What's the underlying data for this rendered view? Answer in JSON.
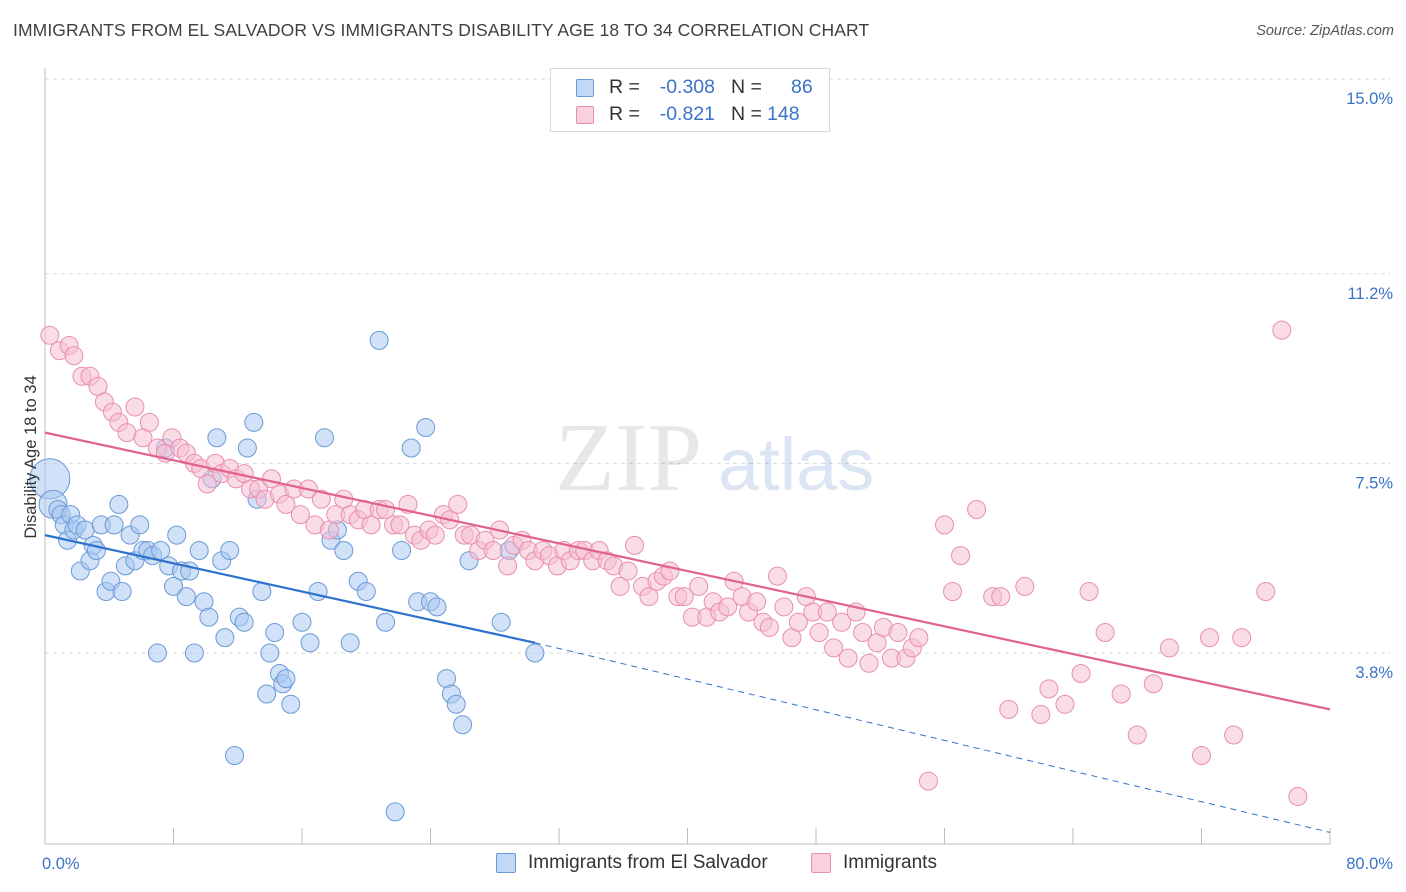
{
  "title": "IMMIGRANTS FROM EL SALVADOR VS IMMIGRANTS DISABILITY AGE 18 TO 34 CORRELATION CHART",
  "source": "Source: ZipAtlas.com",
  "watermark": {
    "part1": "ZIP",
    "part2": "atlas"
  },
  "legend_top": [
    {
      "r_label": "R =",
      "r_value": "-0.308",
      "n_label": "N =",
      "n_value": "86"
    },
    {
      "r_label": "R =",
      "r_value": "-0.821",
      "n_label": "N =",
      "n_value": "148"
    }
  ],
  "chart_data": {
    "type": "scatter",
    "ylabel": "Disability Age 18 to 34",
    "xlabel": "",
    "xlim": [
      0,
      80
    ],
    "ylim": [
      0,
      15
    ],
    "x_tick_labels": [
      "0.0%",
      "80.0%"
    ],
    "y_ticks": [
      3.8,
      7.5,
      11.2,
      15.0
    ],
    "y_tick_labels": [
      "3.8%",
      "7.5%",
      "11.2%",
      "15.0%"
    ],
    "grid": "horizontal dashed",
    "legend_position": "bottom",
    "colors": {
      "blue_fill": "#a9c8f2",
      "blue_edge": "#6c9ad6",
      "blue_line": "#2e72cf",
      "pink_fill": "#f6bfd1",
      "pink_edge": "#e98fae",
      "pink_line": "#e0628e",
      "tick_text": "#3b73c7"
    },
    "series": [
      {
        "name": "Immigrants from El Salvador",
        "trend": {
          "x": [
            0,
            30.5
          ],
          "y": [
            6.1,
            4.0
          ],
          "dashed_to": [
            80,
            0.3
          ]
        },
        "points": [
          [
            0.3,
            7.2
          ],
          [
            0.5,
            6.7
          ],
          [
            0.8,
            6.6
          ],
          [
            1.0,
            6.5
          ],
          [
            1.2,
            6.3
          ],
          [
            1.4,
            6.0
          ],
          [
            1.6,
            6.5
          ],
          [
            1.8,
            6.2
          ],
          [
            2.0,
            6.3
          ],
          [
            2.2,
            5.4
          ],
          [
            2.5,
            6.2
          ],
          [
            2.8,
            5.6
          ],
          [
            3.0,
            5.9
          ],
          [
            3.2,
            5.8
          ],
          [
            3.5,
            6.3
          ],
          [
            3.8,
            5.0
          ],
          [
            4.1,
            5.2
          ],
          [
            4.3,
            6.3
          ],
          [
            4.6,
            6.7
          ],
          [
            4.8,
            5.0
          ],
          [
            5.0,
            5.5
          ],
          [
            5.3,
            6.1
          ],
          [
            5.6,
            5.6
          ],
          [
            5.9,
            6.3
          ],
          [
            6.1,
            5.8
          ],
          [
            6.4,
            5.8
          ],
          [
            6.7,
            5.7
          ],
          [
            7.0,
            3.8
          ],
          [
            7.2,
            5.8
          ],
          [
            7.5,
            7.8
          ],
          [
            7.7,
            5.5
          ],
          [
            8.0,
            5.1
          ],
          [
            8.2,
            6.1
          ],
          [
            8.5,
            5.4
          ],
          [
            8.8,
            4.9
          ],
          [
            9.0,
            5.4
          ],
          [
            9.3,
            3.8
          ],
          [
            9.6,
            5.8
          ],
          [
            9.9,
            4.8
          ],
          [
            10.2,
            4.5
          ],
          [
            10.4,
            7.2
          ],
          [
            10.7,
            8.0
          ],
          [
            11.0,
            5.6
          ],
          [
            11.2,
            4.1
          ],
          [
            11.5,
            5.8
          ],
          [
            11.8,
            1.8
          ],
          [
            12.1,
            4.5
          ],
          [
            12.4,
            4.4
          ],
          [
            12.6,
            7.8
          ],
          [
            13.0,
            8.3
          ],
          [
            13.2,
            6.8
          ],
          [
            13.5,
            5.0
          ],
          [
            13.8,
            3.0
          ],
          [
            14.0,
            3.8
          ],
          [
            14.3,
            4.2
          ],
          [
            14.6,
            3.4
          ],
          [
            14.8,
            3.2
          ],
          [
            15.0,
            3.3
          ],
          [
            15.3,
            2.8
          ],
          [
            16.0,
            4.4
          ],
          [
            16.5,
            4.0
          ],
          [
            17.0,
            5.0
          ],
          [
            17.4,
            8.0
          ],
          [
            17.8,
            6.0
          ],
          [
            18.2,
            6.2
          ],
          [
            18.6,
            5.8
          ],
          [
            19.0,
            4.0
          ],
          [
            19.5,
            5.2
          ],
          [
            20.0,
            5.0
          ],
          [
            20.8,
            9.9
          ],
          [
            21.2,
            4.4
          ],
          [
            21.8,
            0.7
          ],
          [
            22.2,
            5.8
          ],
          [
            22.8,
            7.8
          ],
          [
            23.2,
            4.8
          ],
          [
            23.7,
            8.2
          ],
          [
            24.0,
            4.8
          ],
          [
            24.4,
            4.7
          ],
          [
            25.0,
            3.3
          ],
          [
            25.3,
            3.0
          ],
          [
            25.6,
            2.8
          ],
          [
            26.0,
            2.4
          ],
          [
            26.4,
            5.6
          ],
          [
            28.4,
            4.4
          ],
          [
            28.9,
            5.8
          ],
          [
            30.5,
            3.8
          ]
        ]
      },
      {
        "name": "Immigrants",
        "trend": {
          "x": [
            0,
            80
          ],
          "y": [
            8.1,
            2.7
          ]
        },
        "points": [
          [
            0.3,
            10.0
          ],
          [
            0.9,
            9.7
          ],
          [
            1.5,
            9.8
          ],
          [
            1.8,
            9.6
          ],
          [
            2.3,
            9.2
          ],
          [
            2.8,
            9.2
          ],
          [
            3.3,
            9.0
          ],
          [
            3.7,
            8.7
          ],
          [
            4.2,
            8.5
          ],
          [
            4.6,
            8.3
          ],
          [
            5.1,
            8.1
          ],
          [
            5.6,
            8.6
          ],
          [
            6.1,
            8.0
          ],
          [
            6.5,
            8.3
          ],
          [
            7.0,
            7.8
          ],
          [
            7.5,
            7.7
          ],
          [
            7.9,
            8.0
          ],
          [
            8.4,
            7.8
          ],
          [
            8.8,
            7.7
          ],
          [
            9.3,
            7.5
          ],
          [
            9.7,
            7.4
          ],
          [
            10.1,
            7.1
          ],
          [
            10.6,
            7.5
          ],
          [
            11.0,
            7.3
          ],
          [
            11.5,
            7.4
          ],
          [
            11.9,
            7.2
          ],
          [
            12.4,
            7.3
          ],
          [
            12.8,
            7.0
          ],
          [
            13.3,
            7.0
          ],
          [
            13.7,
            6.8
          ],
          [
            14.1,
            7.2
          ],
          [
            14.6,
            6.9
          ],
          [
            15.0,
            6.7
          ],
          [
            15.5,
            7.0
          ],
          [
            15.9,
            6.5
          ],
          [
            16.4,
            7.0
          ],
          [
            16.8,
            6.3
          ],
          [
            17.2,
            6.8
          ],
          [
            17.7,
            6.2
          ],
          [
            18.1,
            6.5
          ],
          [
            18.6,
            6.8
          ],
          [
            19.0,
            6.5
          ],
          [
            19.5,
            6.4
          ],
          [
            19.9,
            6.6
          ],
          [
            20.3,
            6.3
          ],
          [
            20.8,
            6.6
          ],
          [
            21.2,
            6.6
          ],
          [
            21.7,
            6.3
          ],
          [
            22.1,
            6.3
          ],
          [
            22.6,
            6.7
          ],
          [
            23.0,
            6.1
          ],
          [
            23.4,
            6.0
          ],
          [
            23.9,
            6.2
          ],
          [
            24.3,
            6.1
          ],
          [
            24.8,
            6.5
          ],
          [
            25.2,
            6.4
          ],
          [
            25.7,
            6.7
          ],
          [
            26.1,
            6.1
          ],
          [
            26.5,
            6.1
          ],
          [
            27.0,
            5.8
          ],
          [
            27.4,
            6.0
          ],
          [
            27.9,
            5.8
          ],
          [
            28.3,
            6.2
          ],
          [
            28.8,
            5.5
          ],
          [
            29.2,
            5.9
          ],
          [
            29.7,
            6.0
          ],
          [
            30.1,
            5.8
          ],
          [
            30.5,
            5.6
          ],
          [
            31.0,
            5.8
          ],
          [
            31.4,
            5.7
          ],
          [
            31.9,
            5.5
          ],
          [
            32.3,
            5.8
          ],
          [
            32.7,
            5.6
          ],
          [
            33.2,
            5.8
          ],
          [
            33.6,
            5.8
          ],
          [
            34.1,
            5.6
          ],
          [
            34.5,
            5.8
          ],
          [
            35.0,
            5.6
          ],
          [
            35.4,
            5.5
          ],
          [
            35.8,
            5.1
          ],
          [
            36.3,
            5.4
          ],
          [
            36.7,
            5.9
          ],
          [
            37.2,
            5.1
          ],
          [
            37.6,
            4.9
          ],
          [
            38.1,
            5.2
          ],
          [
            38.5,
            5.3
          ],
          [
            38.9,
            5.4
          ],
          [
            39.4,
            4.9
          ],
          [
            39.8,
            4.9
          ],
          [
            40.3,
            4.5
          ],
          [
            40.7,
            5.1
          ],
          [
            41.2,
            4.5
          ],
          [
            41.6,
            4.8
          ],
          [
            42.0,
            4.6
          ],
          [
            42.5,
            4.7
          ],
          [
            42.9,
            5.2
          ],
          [
            43.4,
            4.9
          ],
          [
            43.8,
            4.6
          ],
          [
            44.3,
            4.8
          ],
          [
            44.7,
            4.4
          ],
          [
            45.1,
            4.3
          ],
          [
            45.6,
            5.3
          ],
          [
            46.0,
            4.7
          ],
          [
            46.5,
            4.1
          ],
          [
            46.9,
            4.4
          ],
          [
            47.4,
            4.9
          ],
          [
            47.8,
            4.6
          ],
          [
            48.2,
            4.2
          ],
          [
            48.7,
            4.6
          ],
          [
            49.1,
            3.9
          ],
          [
            49.6,
            4.4
          ],
          [
            50.0,
            3.7
          ],
          [
            50.5,
            4.6
          ],
          [
            50.9,
            4.2
          ],
          [
            51.3,
            3.6
          ],
          [
            51.8,
            4.0
          ],
          [
            52.2,
            4.3
          ],
          [
            52.7,
            3.7
          ],
          [
            53.1,
            4.2
          ],
          [
            53.6,
            3.7
          ],
          [
            54.0,
            3.9
          ],
          [
            54.4,
            4.1
          ],
          [
            55.0,
            1.3
          ],
          [
            56.0,
            6.3
          ],
          [
            56.5,
            5.0
          ],
          [
            57.0,
            5.7
          ],
          [
            58.0,
            6.6
          ],
          [
            59.0,
            4.9
          ],
          [
            59.5,
            4.9
          ],
          [
            60.0,
            2.7
          ],
          [
            61.0,
            5.1
          ],
          [
            62.0,
            2.6
          ],
          [
            62.5,
            3.1
          ],
          [
            63.5,
            2.8
          ],
          [
            64.5,
            3.4
          ],
          [
            65.0,
            5.0
          ],
          [
            66.0,
            4.2
          ],
          [
            67.0,
            3.0
          ],
          [
            68.0,
            2.2
          ],
          [
            69.0,
            3.2
          ],
          [
            70.0,
            3.9
          ],
          [
            72.0,
            1.8
          ],
          [
            72.5,
            4.1
          ],
          [
            74.0,
            2.2
          ],
          [
            74.5,
            4.1
          ],
          [
            76.0,
            5.0
          ],
          [
            77.0,
            10.1
          ],
          [
            78.0,
            1.0
          ]
        ]
      }
    ]
  }
}
